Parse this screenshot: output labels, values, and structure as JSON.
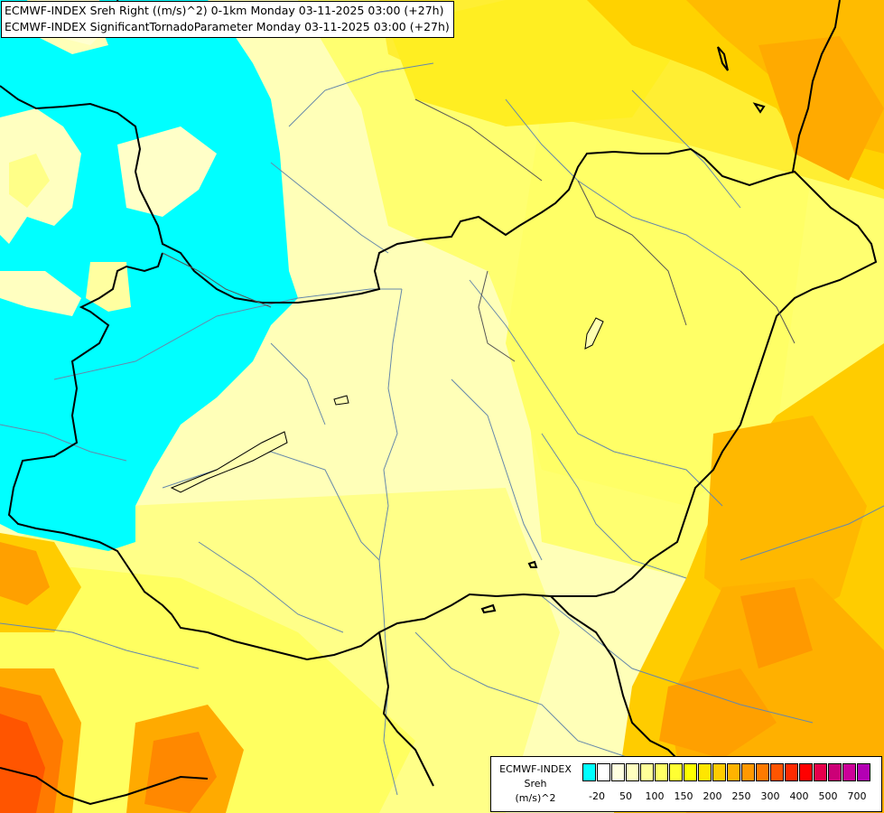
{
  "header": {
    "line1": "ECMWF-INDEX Sreh Right ((m/s)^2) 0-1km Monday 03-11-2025 03:00 (+27h)",
    "line2": "ECMWF-INDEX SignificantTornadoParameter Monday 03-11-2025 03:00 (+27h)"
  },
  "legend": {
    "title_line1": "ECMWF-INDEX",
    "title_line2": "Sreh",
    "title_line3": "(m/s)^2",
    "colors": [
      "#00ffff",
      "#ffffff",
      "#ffffe0",
      "#ffffc0",
      "#ffff99",
      "#ffff66",
      "#ffff33",
      "#ffff00",
      "#ffe600",
      "#ffcc00",
      "#ffb300",
      "#ff9900",
      "#ff7a00",
      "#ff5500",
      "#ff2a00",
      "#ff0000",
      "#e6004c",
      "#cc0077",
      "#cc0099",
      "#b300b3",
      "#9900cc",
      "#8000ff",
      "#6600cc",
      "#4d0099",
      "#330080",
      "#1a0066",
      "#000066"
    ],
    "ticks": [
      "-20",
      "50",
      "100",
      "150",
      "200",
      "250",
      "300",
      "400",
      "500",
      "700"
    ]
  }
}
